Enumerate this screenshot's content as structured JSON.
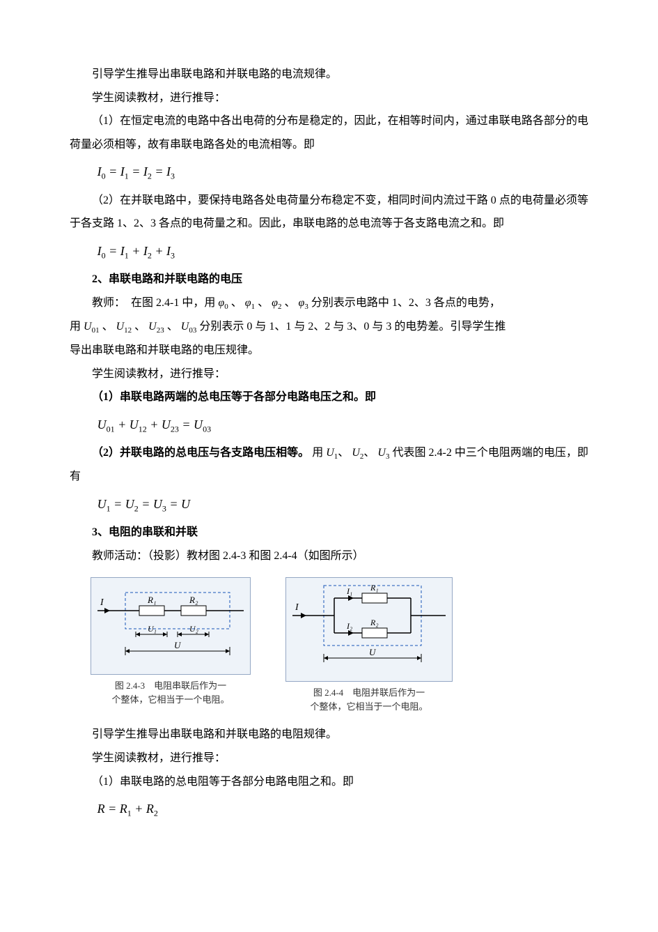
{
  "p1": "引导学生推导出串联电路和并联电路的电流规律。",
  "p2": "学生阅读教材，进行推导：",
  "p3": "（1）在恒定电流的电路中各出电荷的分布是稳定的，因此，在相等时间内，通过串联电路各部分的电荷量必须相等，故有串联电路各处的电流相等。即",
  "eq1_html": "I<span class=\"sub\">0</span> = I<span class=\"sub\">1</span> = I<span class=\"sub\">2</span> = I<span class=\"sub\">3</span>",
  "p4": "（2）在并联电路中，要保持电路各处电荷量分布稳定不变，相同时间内流过干路 0 点的电荷量必须等于各支路 1、2、3 各点的电荷量之和。因此，串联电路的总电流等于各支路电流之和。即",
  "eq2_html": "I<span class=\"sub\">0</span> = I<span class=\"sub\">1</span> + I<span class=\"sub\">2</span> + I<span class=\"sub\">3</span>",
  "h2": "2、串联电路和并联电路的电压",
  "p5_prefix": "教师：　在图 2.4-1 中，用",
  "phi0_html": "φ<span class=\"sub\">0</span>",
  "phi1_html": "φ<span class=\"sub\">1</span>",
  "phi2_html": "φ<span class=\"sub\">2</span>",
  "phi3_html": "φ<span class=\"sub\">3</span>",
  "p5_mid": "分别表示电路中 1、2、3 各点的电势，",
  "p5b_prefix": "用",
  "u01_html": "U<span class=\"sub\">01</span>",
  "u12_html": "U<span class=\"sub\">12</span>",
  "u23_html": "U<span class=\"sub\">23</span>",
  "u03_html": "U<span class=\"sub\">03</span>",
  "p5b_suffix": "分别表示 0 与 1、1 与 2、2 与 3、0 与 3 的电势差。引导学生推",
  "p5c": "导出串联电路和并联电路的电压规律。",
  "p6": "学生阅读教材，进行推导：",
  "p7": "（1）串联电路两端的总电压等于各部分电路电压之和。即",
  "eq3_html": "U<span class=\"sub\">01</span> + U<span class=\"sub\">12</span> + U<span class=\"sub\">23</span> = U<span class=\"sub\">03</span>",
  "p8a": "（2）并联电路的总电压与各支路电压相等。",
  "p8b_prefix": "用",
  "u1s_html": "U<span class=\"sub\">1</span>",
  "u2s_html": "U<span class=\"sub\">2</span>",
  "u3s_html": "U<span class=\"sub\">3</span>",
  "p8b_suffix": "代表图 2.4-2 中三个电阻两端的电压，即有",
  "eq4_html": "U<span class=\"sub\">1</span> = U<span class=\"sub\">2</span> = U<span class=\"sub\">3</span> = U",
  "h3": "3、电阻的串联和并联",
  "p9": "教师活动：（投影）教材图 2.4-3 和图 2.4-4（如图所示）",
  "fig243": {
    "caption": "图 2.4-3　电阻串联后作为一\n个整体，它相当于一个电阻。",
    "colors": {
      "bg": "#eef3f9",
      "border": "#94a7c4",
      "dashed": "#1856b8",
      "wire": "#000000",
      "resistor_fill": "#ffffff",
      "label": "#000000",
      "arrow": "#000000"
    },
    "labels": {
      "I": "I",
      "R1": "R₁",
      "R2": "R₂",
      "U1": "U₁",
      "U2": "U₂",
      "U": "U"
    }
  },
  "fig244": {
    "caption": "图 2.4-4　电阻并联后作为一\n个整体，它相当于一个电阻。",
    "colors": {
      "bg": "#eef3f9",
      "border": "#94a7c4",
      "dashed": "#1856b8",
      "wire": "#000000",
      "resistor_fill": "#ffffff",
      "label": "#000000",
      "arrow": "#000000"
    },
    "labels": {
      "I": "I",
      "I1": "I₁",
      "I2": "I₂",
      "R1": "R₁",
      "R2": "R₂",
      "U": "U"
    }
  },
  "p10": "引导学生推导出串联电路和并联电路的电阻规律。",
  "p11": "学生阅读教材，进行推导：",
  "p12": "（1）串联电路的总电阻等于各部分电路电阻之和。即",
  "eq5_html": "R = R<span class=\"sub\">1</span> + R<span class=\"sub\">2</span>"
}
